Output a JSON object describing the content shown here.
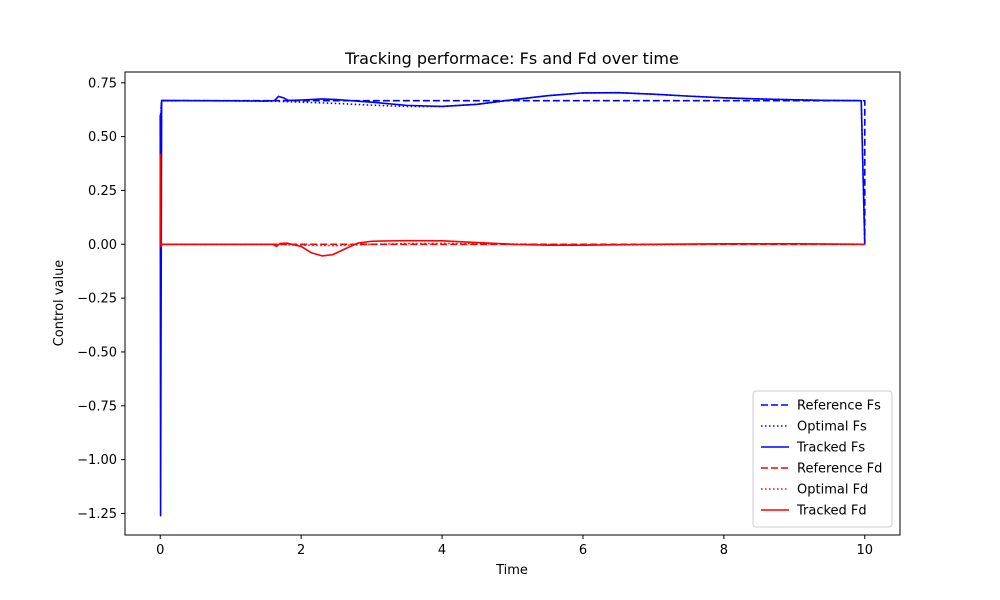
{
  "chart_data": {
    "type": "line",
    "title": "Tracking performace: Fs and Fd over time",
    "xlabel": "Time",
    "ylabel": "Control value",
    "xlim": [
      -0.5,
      10.5
    ],
    "ylim": [
      -1.35,
      0.8
    ],
    "xticks": [
      0,
      2,
      4,
      6,
      8,
      10
    ],
    "xtick_labels": [
      "0",
      "2",
      "4",
      "6",
      "8",
      "10"
    ],
    "yticks": [
      0.75,
      0.5,
      0.25,
      0.0,
      -0.25,
      -0.5,
      -0.75,
      -1.0,
      -1.25
    ],
    "ytick_labels": [
      "0.75",
      "0.50",
      "0.25",
      "0.00",
      "−0.25",
      "−0.50",
      "−0.75",
      "−1.00",
      "−1.25"
    ],
    "grid": false,
    "legend_position": "lower-right",
    "series": [
      {
        "name": "Reference Fs",
        "color": "#0000ff",
        "style": "dashed",
        "points": [
          [
            0,
            0.58
          ],
          [
            0.02,
            0.667
          ],
          [
            10,
            0.667
          ],
          [
            10,
            0.0
          ]
        ]
      },
      {
        "name": "Optimal Fs",
        "color": "#0000ff",
        "style": "dotted",
        "points": [
          [
            0,
            0.56
          ],
          [
            0.02,
            0.666
          ],
          [
            0.5,
            0.667
          ],
          [
            1.0,
            0.666
          ],
          [
            1.5,
            0.665
          ],
          [
            2.0,
            0.66
          ],
          [
            2.5,
            0.654
          ],
          [
            3.0,
            0.646
          ],
          [
            3.5,
            0.64
          ],
          [
            4.0,
            0.64
          ],
          [
            4.5,
            0.65
          ],
          [
            5.0,
            0.671
          ],
          [
            5.5,
            0.69
          ],
          [
            6.0,
            0.703
          ],
          [
            6.5,
            0.704
          ],
          [
            7.0,
            0.697
          ],
          [
            7.5,
            0.688
          ],
          [
            8.0,
            0.68
          ],
          [
            8.5,
            0.675
          ],
          [
            9.0,
            0.671
          ],
          [
            9.5,
            0.668
          ],
          [
            9.95,
            0.667
          ],
          [
            10,
            0.0
          ]
        ]
      },
      {
        "name": "Tracked Fs",
        "color": "#0000ff",
        "style": "solid",
        "points": [
          [
            0,
            0.6
          ],
          [
            0.005,
            -1.26
          ],
          [
            0.02,
            0.668
          ],
          [
            0.5,
            0.667
          ],
          [
            1.0,
            0.666
          ],
          [
            1.5,
            0.665
          ],
          [
            1.62,
            0.667
          ],
          [
            1.68,
            0.687
          ],
          [
            1.75,
            0.68
          ],
          [
            1.82,
            0.668
          ],
          [
            2.0,
            0.67
          ],
          [
            2.3,
            0.675
          ],
          [
            2.5,
            0.672
          ],
          [
            3.0,
            0.66
          ],
          [
            3.5,
            0.645
          ],
          [
            4.0,
            0.64
          ],
          [
            4.5,
            0.65
          ],
          [
            5.0,
            0.671
          ],
          [
            5.5,
            0.69
          ],
          [
            6.0,
            0.703
          ],
          [
            6.5,
            0.704
          ],
          [
            7.0,
            0.697
          ],
          [
            7.5,
            0.688
          ],
          [
            8.0,
            0.68
          ],
          [
            8.5,
            0.675
          ],
          [
            9.0,
            0.671
          ],
          [
            9.5,
            0.668
          ],
          [
            9.95,
            0.667
          ],
          [
            10,
            0.0
          ]
        ]
      },
      {
        "name": "Reference Fd",
        "color": "#ff0000",
        "style": "dashed",
        "points": [
          [
            0,
            0.0
          ],
          [
            10,
            0.0
          ]
        ]
      },
      {
        "name": "Optimal Fd",
        "color": "#ff0000",
        "style": "dotted",
        "points": [
          [
            0,
            0.0
          ],
          [
            1.6,
            0.0
          ],
          [
            2.0,
            -0.004
          ],
          [
            2.5,
            -0.006
          ],
          [
            3.0,
            0.0
          ],
          [
            3.5,
            0.003
          ],
          [
            4.0,
            0.004
          ],
          [
            5.0,
            0.001
          ],
          [
            6.0,
            -0.003
          ],
          [
            7.0,
            -0.002
          ],
          [
            8.0,
            0.001
          ],
          [
            9.0,
            0.002
          ],
          [
            10,
            0.0
          ]
        ]
      },
      {
        "name": "Tracked Fd",
        "color": "#ff0000",
        "style": "solid",
        "points": [
          [
            0,
            0.42
          ],
          [
            0.01,
            -0.01
          ],
          [
            0.03,
            0.0
          ],
          [
            1.6,
            0.0
          ],
          [
            1.65,
            -0.01
          ],
          [
            1.7,
            0.004
          ],
          [
            1.8,
            0.005
          ],
          [
            2.0,
            -0.01
          ],
          [
            2.15,
            -0.04
          ],
          [
            2.3,
            -0.054
          ],
          [
            2.45,
            -0.048
          ],
          [
            2.6,
            -0.025
          ],
          [
            2.8,
            0.005
          ],
          [
            3.0,
            0.014
          ],
          [
            3.5,
            0.017
          ],
          [
            4.0,
            0.016
          ],
          [
            4.5,
            0.008
          ],
          [
            5.0,
            0.0
          ],
          [
            5.5,
            -0.004
          ],
          [
            6.0,
            -0.004
          ],
          [
            6.5,
            -0.002
          ],
          [
            7.0,
            0.0
          ],
          [
            8.0,
            0.002
          ],
          [
            9.0,
            0.002
          ],
          [
            10,
            0.0
          ]
        ]
      }
    ]
  }
}
